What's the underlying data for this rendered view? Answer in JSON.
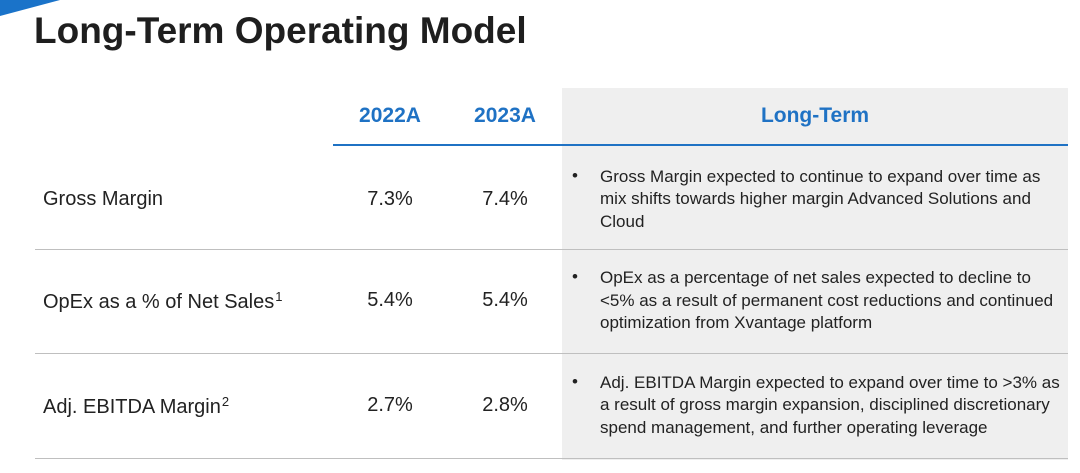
{
  "title": "Long-Term Operating Model",
  "table": {
    "headers": [
      "2022A",
      "2023A",
      "Long-Term"
    ],
    "rows": [
      {
        "label": "Gross Margin",
        "note": null,
        "values": [
          "7.3%",
          "7.4%"
        ],
        "long_term": "Gross Margin expected to continue to expand over time as mix shifts towards higher margin Advanced Solutions and Cloud"
      },
      {
        "label": "OpEx as a % of Net Sales",
        "note": "1",
        "values": [
          "5.4%",
          "5.4%"
        ],
        "long_term": "OpEx as a percentage of net sales expected to decline to <5% as a result of permanent cost reductions and continued optimization from Xvantage platform"
      },
      {
        "label": "Adj. EBITDA Margin",
        "note": "2",
        "values": [
          "2.7%",
          "2.8%"
        ],
        "long_term": "Adj. EBITDA Margin expected to expand over time to >3% as a result of gross margin expansion, disciplined discretionary spend management, and further operating leverage"
      }
    ],
    "bullet": "•"
  }
}
